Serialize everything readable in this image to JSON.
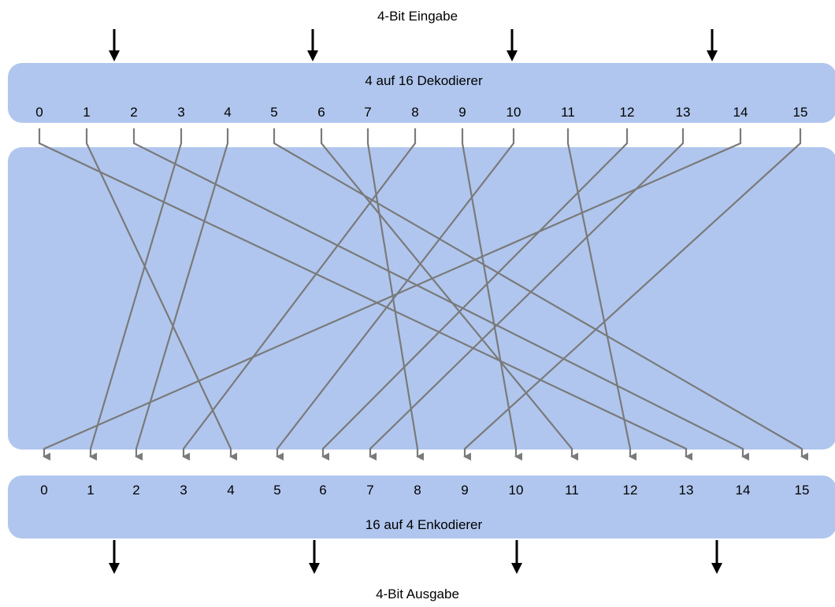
{
  "input_label": "4-Bit Eingabe",
  "decoder_title": "4 auf 16 Dekodierer",
  "encoder_title": "16 auf 4 Enkodierer",
  "output_label": "4-Bit Ausgabe",
  "decoder_outputs": [
    "0",
    "1",
    "2",
    "3",
    "4",
    "5",
    "6",
    "7",
    "8",
    "9",
    "10",
    "11",
    "12",
    "13",
    "14",
    "15"
  ],
  "encoder_inputs": [
    "0",
    "1",
    "2",
    "3",
    "4",
    "5",
    "6",
    "7",
    "8",
    "9",
    "10",
    "11",
    "12",
    "13",
    "14",
    "15"
  ],
  "mapping": [
    {
      "from": 0,
      "to": 13
    },
    {
      "from": 1,
      "to": 4
    },
    {
      "from": 2,
      "to": 14
    },
    {
      "from": 3,
      "to": 1
    },
    {
      "from": 4,
      "to": 2
    },
    {
      "from": 5,
      "to": 15
    },
    {
      "from": 6,
      "to": 11
    },
    {
      "from": 7,
      "to": 8
    },
    {
      "from": 8,
      "to": 3
    },
    {
      "from": 9,
      "to": 10
    },
    {
      "from": 10,
      "to": 5
    },
    {
      "from": 11,
      "to": 12
    },
    {
      "from": 12,
      "to": 6
    },
    {
      "from": 13,
      "to": 7
    },
    {
      "from": 14,
      "to": 0
    },
    {
      "from": 15,
      "to": 9
    }
  ],
  "colors": {
    "panel": "#b0c6ee",
    "wire": "#7a7a7a",
    "arrow": "#000000"
  }
}
